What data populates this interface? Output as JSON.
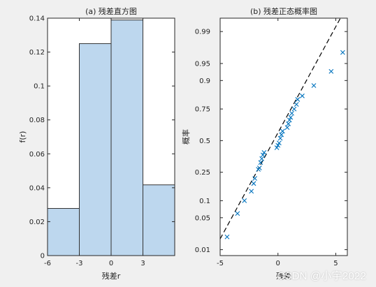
{
  "chart_data": [
    {
      "type": "bar",
      "title": "(a) 残差直方图",
      "xlabel": "残差r",
      "ylabel": "f(r)",
      "bins": [
        [
          -6,
          -3
        ],
        [
          -3,
          0
        ],
        [
          0,
          3
        ],
        [
          3,
          6
        ]
      ],
      "values": [
        0.0278,
        0.125,
        0.1389,
        0.0417
      ],
      "xticks": [
        "-6",
        "-3",
        "0",
        "3"
      ],
      "yticks": [
        "0",
        "0.02",
        "0.04",
        "0.06",
        "0.08",
        "0.1",
        "0.12",
        "0.14"
      ],
      "xlim": [
        -6,
        6
      ],
      "ylim": [
        0,
        0.14
      ],
      "bar_color": "#bdd7ee",
      "edge_color": "#333333"
    },
    {
      "type": "scatter",
      "title": "(b) 残差正态概率图",
      "xlabel": "残差",
      "ylabel": "概率",
      "xlim": [
        -5,
        6
      ],
      "xticks": [
        "-5",
        "0",
        "5"
      ],
      "yticks": [
        "0.01",
        "0.05",
        "0.1",
        "0.25",
        "0.5",
        "0.75",
        "0.9",
        "0.95",
        "0.99"
      ],
      "marker_color": "#0072bd",
      "reference_line": [
        [
          -5,
          0.018
        ],
        [
          5.4,
          0.9955
        ]
      ],
      "points": [
        [
          -4.4,
          0.02
        ],
        [
          -3.5,
          0.06
        ],
        [
          -2.9,
          0.1
        ],
        [
          -2.3,
          0.14
        ],
        [
          -2.1,
          0.18
        ],
        [
          -2.0,
          0.21
        ],
        [
          -1.7,
          0.27
        ],
        [
          -1.6,
          0.28
        ],
        [
          -1.5,
          0.32
        ],
        [
          -1.4,
          0.35
        ],
        [
          -1.3,
          0.38
        ],
        [
          -1.2,
          0.4
        ],
        [
          -0.1,
          0.44
        ],
        [
          0.0,
          0.46
        ],
        [
          0.1,
          0.48
        ],
        [
          0.2,
          0.52
        ],
        [
          0.3,
          0.55
        ],
        [
          0.4,
          0.58
        ],
        [
          0.8,
          0.61
        ],
        [
          0.9,
          0.64
        ],
        [
          1.0,
          0.67
        ],
        [
          1.1,
          0.69
        ],
        [
          1.2,
          0.72
        ],
        [
          1.4,
          0.75
        ],
        [
          1.6,
          0.78
        ],
        [
          1.7,
          0.81
        ],
        [
          2.1,
          0.83
        ],
        [
          3.1,
          0.88
        ],
        [
          4.6,
          0.93
        ],
        [
          5.6,
          0.97
        ]
      ]
    }
  ],
  "watermark": "CSDN @小宇2022"
}
